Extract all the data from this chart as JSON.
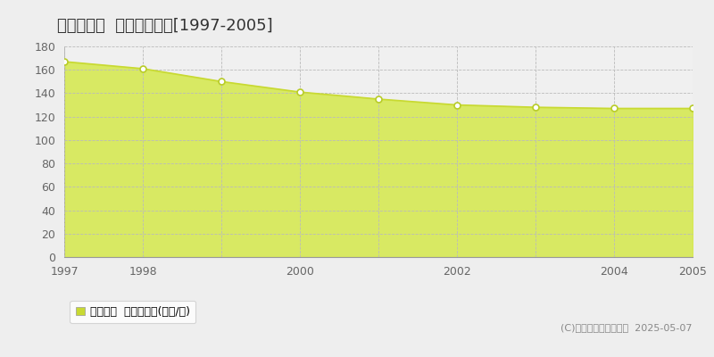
{
  "title": "江東区平野  基準地価推移[1997-2005]",
  "years": [
    1997,
    1998,
    1999,
    2000,
    2001,
    2002,
    2003,
    2004,
    2005
  ],
  "values": [
    167,
    161,
    150,
    141,
    135,
    130,
    128,
    127,
    127
  ],
  "line_color": "#c8d932",
  "fill_color": "#d4e84a",
  "fill_alpha": 0.85,
  "marker_facecolor": "#ffffff",
  "marker_edgecolor": "#b8cc28",
  "background_color": "#eeeeee",
  "plot_bg_color": "#f0f0f0",
  "grid_color": "#bbbbbb",
  "ylim": [
    0,
    180
  ],
  "ytick_step": 20,
  "xtick_labels_show": [
    1997,
    1998,
    2000,
    2002,
    2004,
    2005
  ],
  "legend_label": "基準地価  平均坪単価(万円/坪)",
  "legend_square_color": "#c8d932",
  "copyright_text": "(C)土地価格ドットコム  2025-05-07",
  "title_fontsize": 13,
  "tick_fontsize": 9,
  "legend_fontsize": 9,
  "copyright_fontsize": 8,
  "tick_color": "#666666"
}
